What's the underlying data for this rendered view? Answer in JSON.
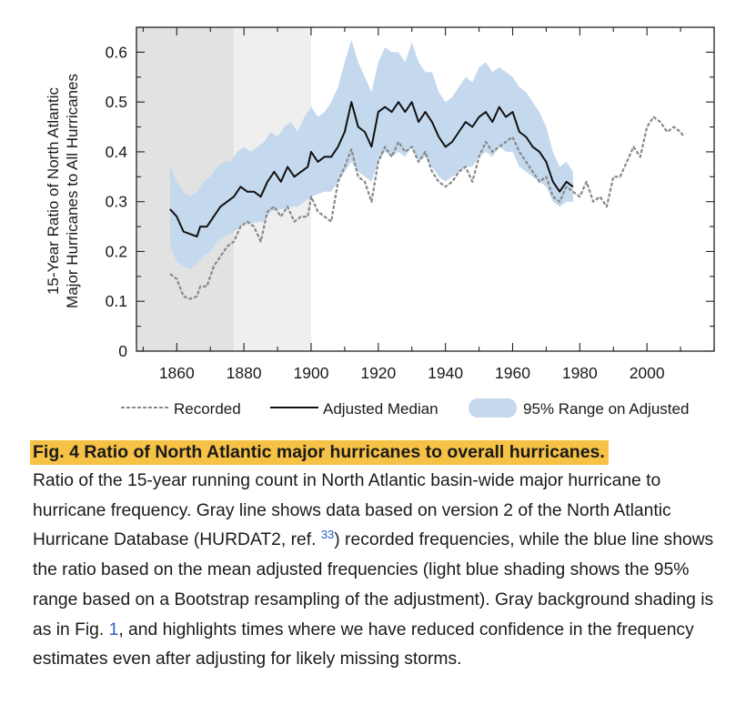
{
  "chart_data": {
    "type": "line",
    "xlabel": "",
    "ylabel_lines": [
      "15-Year Ratio of North Atlantic",
      "Major Hurricanes to All Hurricanes"
    ],
    "xlim": [
      1848,
      2020
    ],
    "ylim": [
      0,
      0.65
    ],
    "xticks": [
      1860,
      1880,
      1900,
      1920,
      1940,
      1960,
      1980,
      2000
    ],
    "yticks": [
      0,
      0.1,
      0.2,
      0.3,
      0.4,
      0.5,
      0.6
    ],
    "ytick_labels": [
      "0",
      "0.1",
      "0.2",
      "0.3",
      "0.4",
      "0.5",
      "0.6"
    ],
    "shaded_periods": [
      {
        "from": 1848,
        "to": 1877,
        "color": "#e2e2e2"
      },
      {
        "from": 1877,
        "to": 1900,
        "color": "#efefef"
      }
    ],
    "legend_position": "bottom",
    "series": [
      {
        "name": "Recorded",
        "style": "dashed",
        "color": "#888888",
        "x": [
          1858,
          1860,
          1862,
          1864,
          1866,
          1867,
          1869,
          1871,
          1873,
          1875,
          1877,
          1879,
          1881,
          1883,
          1885,
          1887,
          1889,
          1891,
          1893,
          1895,
          1897,
          1899,
          1900,
          1902,
          1904,
          1906,
          1908,
          1910,
          1912,
          1914,
          1916,
          1918,
          1920,
          1922,
          1924,
          1926,
          1928,
          1930,
          1932,
          1934,
          1936,
          1938,
          1940,
          1942,
          1944,
          1946,
          1948,
          1950,
          1952,
          1954,
          1956,
          1958,
          1960,
          1962,
          1964,
          1966,
          1968,
          1970,
          1972,
          1974,
          1976,
          1978,
          1980,
          1982,
          1984,
          1986,
          1988,
          1990,
          1992,
          1994,
          1996,
          1998,
          2000,
          2002,
          2004,
          2006,
          2008,
          2010,
          2011
        ],
        "values": [
          0.155,
          0.145,
          0.11,
          0.105,
          0.11,
          0.13,
          0.13,
          0.17,
          0.19,
          0.21,
          0.22,
          0.25,
          0.26,
          0.25,
          0.22,
          0.28,
          0.29,
          0.27,
          0.29,
          0.26,
          0.27,
          0.27,
          0.31,
          0.28,
          0.27,
          0.26,
          0.34,
          0.37,
          0.405,
          0.35,
          0.34,
          0.3,
          0.38,
          0.41,
          0.39,
          0.42,
          0.4,
          0.41,
          0.38,
          0.4,
          0.36,
          0.34,
          0.33,
          0.34,
          0.36,
          0.37,
          0.34,
          0.39,
          0.42,
          0.4,
          0.41,
          0.42,
          0.43,
          0.4,
          0.38,
          0.36,
          0.34,
          0.35,
          0.31,
          0.3,
          0.33,
          0.32,
          0.31,
          0.34,
          0.3,
          0.31,
          0.29,
          0.35,
          0.35,
          0.38,
          0.41,
          0.39,
          0.45,
          0.47,
          0.46,
          0.44,
          0.45,
          0.44,
          0.43
        ]
      },
      {
        "name": "Adjusted Median",
        "style": "solid",
        "color": "#111111",
        "x": [
          1858,
          1860,
          1862,
          1864,
          1866,
          1867,
          1869,
          1871,
          1873,
          1875,
          1877,
          1879,
          1881,
          1883,
          1885,
          1887,
          1889,
          1891,
          1893,
          1895,
          1897,
          1899,
          1900,
          1902,
          1904,
          1906,
          1908,
          1910,
          1912,
          1914,
          1916,
          1918,
          1920,
          1922,
          1924,
          1926,
          1928,
          1930,
          1932,
          1934,
          1936,
          1938,
          1940,
          1942,
          1944,
          1946,
          1948,
          1950,
          1952,
          1954,
          1956,
          1958,
          1960,
          1962,
          1964,
          1966,
          1968,
          1970,
          1972,
          1974,
          1976,
          1978
        ],
        "values": [
          0.285,
          0.27,
          0.24,
          0.235,
          0.23,
          0.25,
          0.25,
          0.27,
          0.29,
          0.3,
          0.31,
          0.33,
          0.32,
          0.32,
          0.31,
          0.34,
          0.36,
          0.34,
          0.37,
          0.35,
          0.36,
          0.37,
          0.4,
          0.38,
          0.39,
          0.39,
          0.41,
          0.44,
          0.5,
          0.45,
          0.44,
          0.41,
          0.48,
          0.49,
          0.48,
          0.5,
          0.48,
          0.5,
          0.46,
          0.48,
          0.46,
          0.43,
          0.41,
          0.42,
          0.44,
          0.46,
          0.45,
          0.47,
          0.48,
          0.46,
          0.49,
          0.47,
          0.48,
          0.44,
          0.43,
          0.41,
          0.4,
          0.38,
          0.34,
          0.32,
          0.34,
          0.33
        ]
      }
    ],
    "band": {
      "name": "95% Range on Adjusted",
      "color": "#c5d9ee",
      "x": [
        1858,
        1860,
        1862,
        1864,
        1866,
        1868,
        1870,
        1872,
        1874,
        1876,
        1878,
        1880,
        1882,
        1884,
        1886,
        1888,
        1890,
        1892,
        1894,
        1896,
        1898,
        1900,
        1902,
        1904,
        1906,
        1908,
        1910,
        1912,
        1914,
        1916,
        1918,
        1920,
        1922,
        1924,
        1926,
        1928,
        1930,
        1932,
        1934,
        1936,
        1938,
        1940,
        1942,
        1944,
        1946,
        1948,
        1950,
        1952,
        1954,
        1956,
        1958,
        1960,
        1962,
        1964,
        1966,
        1968,
        1970,
        1972,
        1974,
        1976,
        1978
      ],
      "upper": [
        0.375,
        0.34,
        0.32,
        0.31,
        0.32,
        0.34,
        0.35,
        0.37,
        0.38,
        0.38,
        0.4,
        0.41,
        0.4,
        0.41,
        0.42,
        0.44,
        0.43,
        0.45,
        0.46,
        0.44,
        0.47,
        0.49,
        0.47,
        0.48,
        0.5,
        0.53,
        0.58,
        0.625,
        0.58,
        0.55,
        0.52,
        0.58,
        0.61,
        0.6,
        0.6,
        0.58,
        0.62,
        0.58,
        0.56,
        0.56,
        0.52,
        0.5,
        0.51,
        0.53,
        0.55,
        0.54,
        0.57,
        0.58,
        0.56,
        0.57,
        0.56,
        0.55,
        0.53,
        0.52,
        0.5,
        0.48,
        0.45,
        0.4,
        0.37,
        0.38,
        0.36
      ],
      "lower": [
        0.21,
        0.18,
        0.17,
        0.165,
        0.175,
        0.19,
        0.2,
        0.22,
        0.23,
        0.235,
        0.245,
        0.255,
        0.255,
        0.26,
        0.26,
        0.28,
        0.285,
        0.285,
        0.29,
        0.29,
        0.3,
        0.31,
        0.315,
        0.32,
        0.32,
        0.34,
        0.36,
        0.38,
        0.36,
        0.35,
        0.34,
        0.38,
        0.4,
        0.39,
        0.4,
        0.39,
        0.41,
        0.38,
        0.39,
        0.37,
        0.35,
        0.34,
        0.35,
        0.36,
        0.37,
        0.37,
        0.39,
        0.4,
        0.39,
        0.41,
        0.4,
        0.4,
        0.37,
        0.36,
        0.35,
        0.34,
        0.33,
        0.3,
        0.29,
        0.3,
        0.3
      ]
    }
  },
  "caption": {
    "title": "Fig. 4 Ratio of North Atlantic major hurricanes to overall hurricanes.",
    "text_1": "Ratio of the 15-year running count in North Atlantic basin-wide major hurricane to hurricane frequency. Gray line shows data based on version 2 of the North Atlantic Hurricane Database (HURDAT2, ref. ",
    "ref_33": "33",
    "text_2": ") recorded frequencies, while the blue line shows the ratio based on the mean adjusted frequencies (light blue shading shows the 95% range based on a Bootstrap resampling of the adjustment). Gray background shading is as in Fig. ",
    "ref_fig": "1",
    "text_3": ", and highlights times where we have reduced confidence in the frequency estimates even after adjusting for likely missing storms."
  }
}
